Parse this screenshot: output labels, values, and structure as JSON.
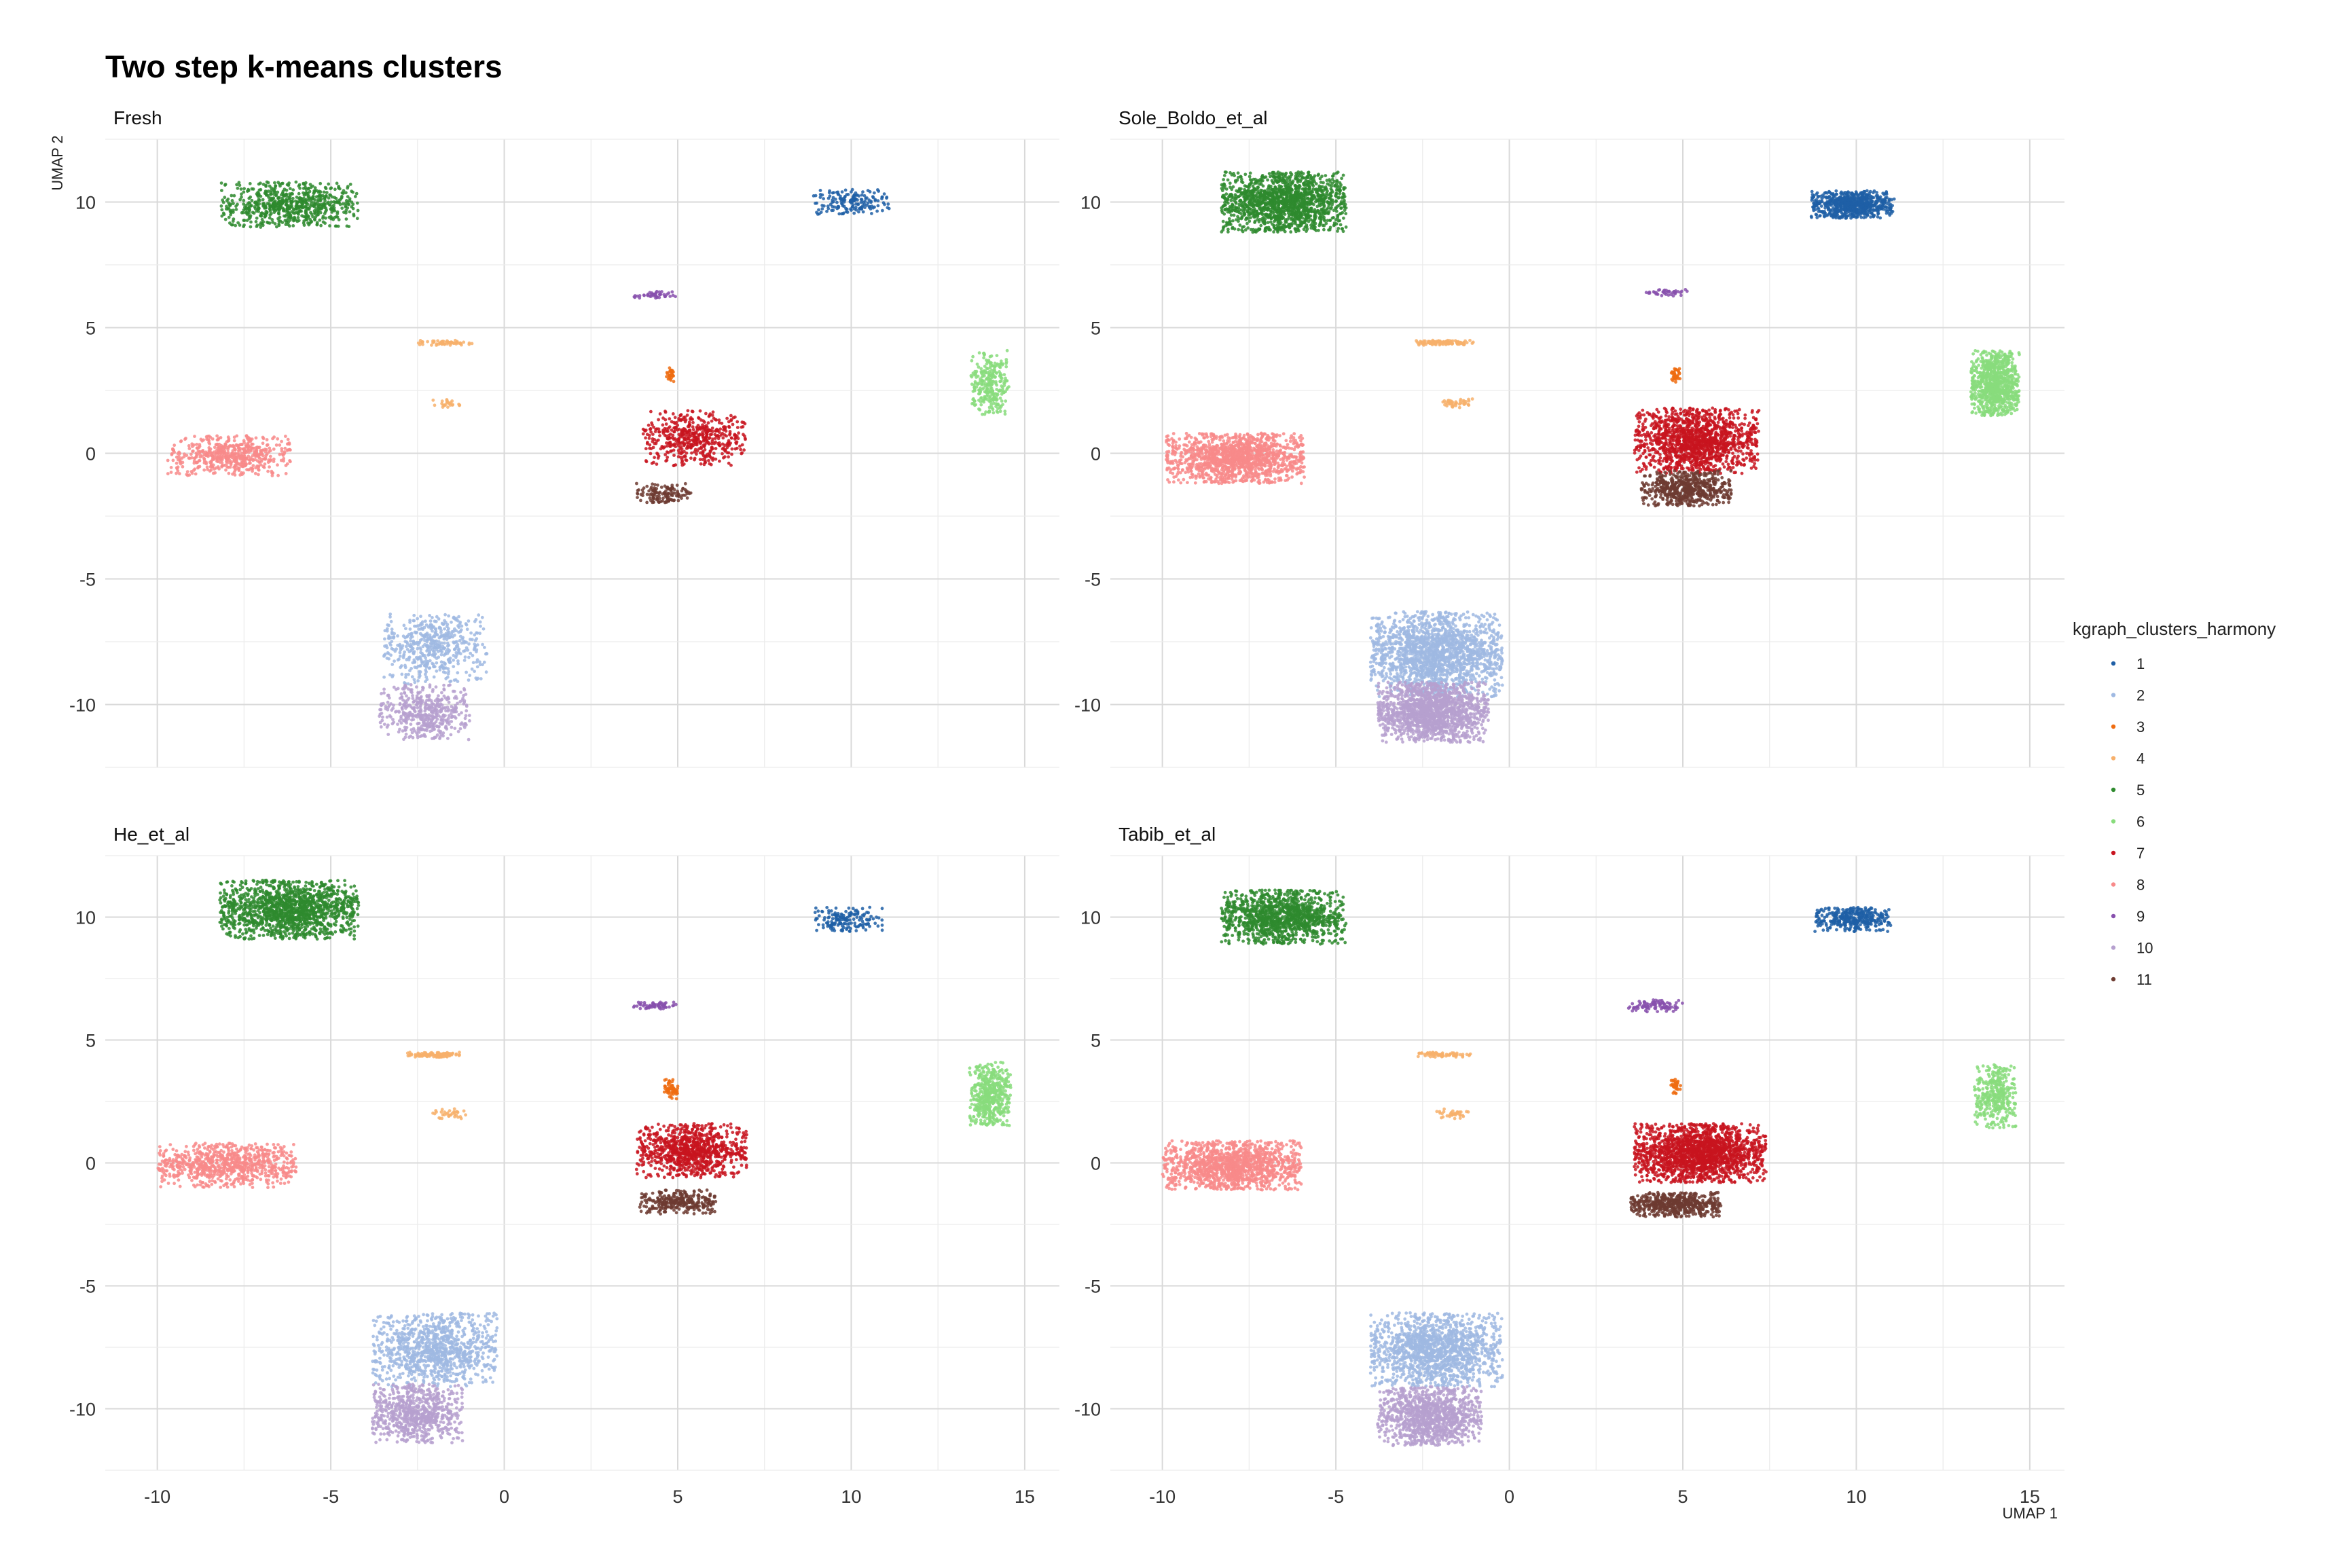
{
  "chart_data": {
    "type": "scatter",
    "title": "Two step k-means clusters",
    "xlabel": "UMAP 1",
    "ylabel": "UMAP 2",
    "xlim": [
      -11.5,
      16
    ],
    "ylim": [
      -12.5,
      12.5
    ],
    "x_ticks": [
      -10,
      -5,
      0,
      5,
      10,
      15
    ],
    "y_ticks": [
      -10,
      -5,
      0,
      5,
      10
    ],
    "x_tick_labels": [
      "-10",
      "-5",
      "0",
      "5",
      "10",
      "15"
    ],
    "y_tick_labels": [
      "-10",
      "-5",
      "0",
      "5",
      "10"
    ],
    "grid": true,
    "legend": {
      "title": "kgraph_clusters_harmony",
      "position": "right",
      "items": [
        "1",
        "2",
        "3",
        "4",
        "5",
        "6",
        "7",
        "8",
        "9",
        "10",
        "11"
      ]
    },
    "colors": {
      "1": "#1f5fa6",
      "2": "#9fb9e2",
      "3": "#ef6c10",
      "4": "#f7b06b",
      "5": "#2e8a2e",
      "6": "#88dc7c",
      "7": "#c8141f",
      "8": "#f88a8a",
      "9": "#8750ad",
      "10": "#b6a0cf",
      "11": "#6d3b31"
    },
    "panels": [
      {
        "title": "Fresh",
        "clusters": [
          {
            "id": "5",
            "cx": -6.2,
            "cy": 9.9,
            "rx": 2.0,
            "ry": 0.9,
            "n": 700
          },
          {
            "id": "1",
            "cx": 10.0,
            "cy": 10.0,
            "rx": 1.1,
            "ry": 0.5,
            "n": 170
          },
          {
            "id": "9",
            "cx": 4.4,
            "cy": 6.3,
            "rx": 0.7,
            "ry": 0.15,
            "n": 45
          },
          {
            "id": "4",
            "cx": -1.7,
            "cy": 4.4,
            "rx": 0.8,
            "ry": 0.1,
            "n": 60
          },
          {
            "id": "4",
            "cx": -1.6,
            "cy": 2.0,
            "rx": 0.45,
            "ry": 0.2,
            "n": 25
          },
          {
            "id": "3",
            "cx": 4.8,
            "cy": 3.1,
            "rx": 0.15,
            "ry": 0.3,
            "n": 30
          },
          {
            "id": "6",
            "cx": 14.0,
            "cy": 2.8,
            "rx": 0.55,
            "ry": 1.3,
            "n": 280
          },
          {
            "id": "7",
            "cx": 5.5,
            "cy": 0.6,
            "rx": 1.5,
            "ry": 1.1,
            "n": 520
          },
          {
            "id": "11",
            "cx": 4.6,
            "cy": -1.6,
            "rx": 0.8,
            "ry": 0.4,
            "n": 140
          },
          {
            "id": "8",
            "cx": -7.9,
            "cy": -0.1,
            "rx": 1.8,
            "ry": 0.8,
            "n": 550
          },
          {
            "id": "2",
            "cx": -2.0,
            "cy": -7.8,
            "rx": 1.5,
            "ry": 1.4,
            "n": 520
          },
          {
            "id": "10",
            "cx": -2.3,
            "cy": -10.3,
            "rx": 1.3,
            "ry": 1.1,
            "n": 480
          }
        ]
      },
      {
        "title": "Sole_Boldo_et_al",
        "clusters": [
          {
            "id": "5",
            "cx": -6.5,
            "cy": 10.0,
            "rx": 1.8,
            "ry": 1.2,
            "n": 1500
          },
          {
            "id": "1",
            "cx": 9.9,
            "cy": 9.9,
            "rx": 1.2,
            "ry": 0.55,
            "n": 700
          },
          {
            "id": "9",
            "cx": 4.5,
            "cy": 6.4,
            "rx": 0.7,
            "ry": 0.15,
            "n": 40
          },
          {
            "id": "4",
            "cx": -1.8,
            "cy": 4.4,
            "rx": 0.9,
            "ry": 0.1,
            "n": 110
          },
          {
            "id": "4",
            "cx": -1.5,
            "cy": 2.0,
            "rx": 0.5,
            "ry": 0.2,
            "n": 45
          },
          {
            "id": "3",
            "cx": 4.8,
            "cy": 3.1,
            "rx": 0.15,
            "ry": 0.3,
            "n": 40
          },
          {
            "id": "6",
            "cx": 14.0,
            "cy": 2.8,
            "rx": 0.7,
            "ry": 1.3,
            "n": 900
          },
          {
            "id": "7",
            "cx": 5.4,
            "cy": 0.5,
            "rx": 1.8,
            "ry": 1.3,
            "n": 1400
          },
          {
            "id": "11",
            "cx": 5.1,
            "cy": -1.4,
            "rx": 1.3,
            "ry": 0.7,
            "n": 600
          },
          {
            "id": "8",
            "cx": -7.9,
            "cy": -0.2,
            "rx": 2.0,
            "ry": 1.0,
            "n": 1400
          },
          {
            "id": "2",
            "cx": -2.1,
            "cy": -8.0,
            "rx": 1.9,
            "ry": 1.7,
            "n": 1800
          },
          {
            "id": "10",
            "cx": -2.2,
            "cy": -10.3,
            "rx": 1.6,
            "ry": 1.2,
            "n": 1500
          }
        ]
      },
      {
        "title": "He_et_al",
        "clusters": [
          {
            "id": "5",
            "cx": -6.2,
            "cy": 10.3,
            "rx": 2.0,
            "ry": 1.2,
            "n": 1400
          },
          {
            "id": "1",
            "cx": 9.9,
            "cy": 9.9,
            "rx": 1.0,
            "ry": 0.5,
            "n": 160
          },
          {
            "id": "9",
            "cx": 4.3,
            "cy": 6.4,
            "rx": 0.7,
            "ry": 0.15,
            "n": 60
          },
          {
            "id": "4",
            "cx": -2.0,
            "cy": 4.4,
            "rx": 0.8,
            "ry": 0.1,
            "n": 110
          },
          {
            "id": "4",
            "cx": -1.6,
            "cy": 2.0,
            "rx": 0.5,
            "ry": 0.2,
            "n": 35
          },
          {
            "id": "3",
            "cx": 4.8,
            "cy": 3.0,
            "rx": 0.2,
            "ry": 0.4,
            "n": 60
          },
          {
            "id": "6",
            "cx": 14.0,
            "cy": 2.8,
            "rx": 0.6,
            "ry": 1.3,
            "n": 500
          },
          {
            "id": "7",
            "cx": 5.4,
            "cy": 0.5,
            "rx": 1.6,
            "ry": 1.1,
            "n": 900
          },
          {
            "id": "11",
            "cx": 5.0,
            "cy": -1.6,
            "rx": 1.1,
            "ry": 0.5,
            "n": 300
          },
          {
            "id": "8",
            "cx": -8.0,
            "cy": -0.1,
            "rx": 2.0,
            "ry": 0.9,
            "n": 800
          },
          {
            "id": "2",
            "cx": -2.0,
            "cy": -7.6,
            "rx": 1.8,
            "ry": 1.5,
            "n": 1000
          },
          {
            "id": "10",
            "cx": -2.5,
            "cy": -10.2,
            "rx": 1.3,
            "ry": 1.2,
            "n": 700
          }
        ]
      },
      {
        "title": "Tabib_et_al",
        "clusters": [
          {
            "id": "5",
            "cx": -6.5,
            "cy": 10.0,
            "rx": 1.8,
            "ry": 1.1,
            "n": 1200
          },
          {
            "id": "1",
            "cx": 9.9,
            "cy": 9.9,
            "rx": 1.1,
            "ry": 0.5,
            "n": 350
          },
          {
            "id": "9",
            "cx": 4.2,
            "cy": 6.4,
            "rx": 0.8,
            "ry": 0.25,
            "n": 90
          },
          {
            "id": "4",
            "cx": -1.9,
            "cy": 4.4,
            "rx": 0.8,
            "ry": 0.1,
            "n": 70
          },
          {
            "id": "4",
            "cx": -1.6,
            "cy": 2.0,
            "rx": 0.5,
            "ry": 0.2,
            "n": 35
          },
          {
            "id": "3",
            "cx": 4.8,
            "cy": 3.1,
            "rx": 0.15,
            "ry": 0.3,
            "n": 35
          },
          {
            "id": "6",
            "cx": 14.0,
            "cy": 2.7,
            "rx": 0.6,
            "ry": 1.3,
            "n": 350
          },
          {
            "id": "7",
            "cx": 5.5,
            "cy": 0.4,
            "rx": 1.9,
            "ry": 1.2,
            "n": 1800
          },
          {
            "id": "11",
            "cx": 4.8,
            "cy": -1.7,
            "rx": 1.3,
            "ry": 0.5,
            "n": 550
          },
          {
            "id": "8",
            "cx": -8.0,
            "cy": -0.1,
            "rx": 2.0,
            "ry": 1.0,
            "n": 1300
          },
          {
            "id": "2",
            "cx": -2.1,
            "cy": -7.6,
            "rx": 1.9,
            "ry": 1.5,
            "n": 1400
          },
          {
            "id": "10",
            "cx": -2.3,
            "cy": -10.3,
            "rx": 1.5,
            "ry": 1.2,
            "n": 1100
          }
        ]
      }
    ]
  }
}
